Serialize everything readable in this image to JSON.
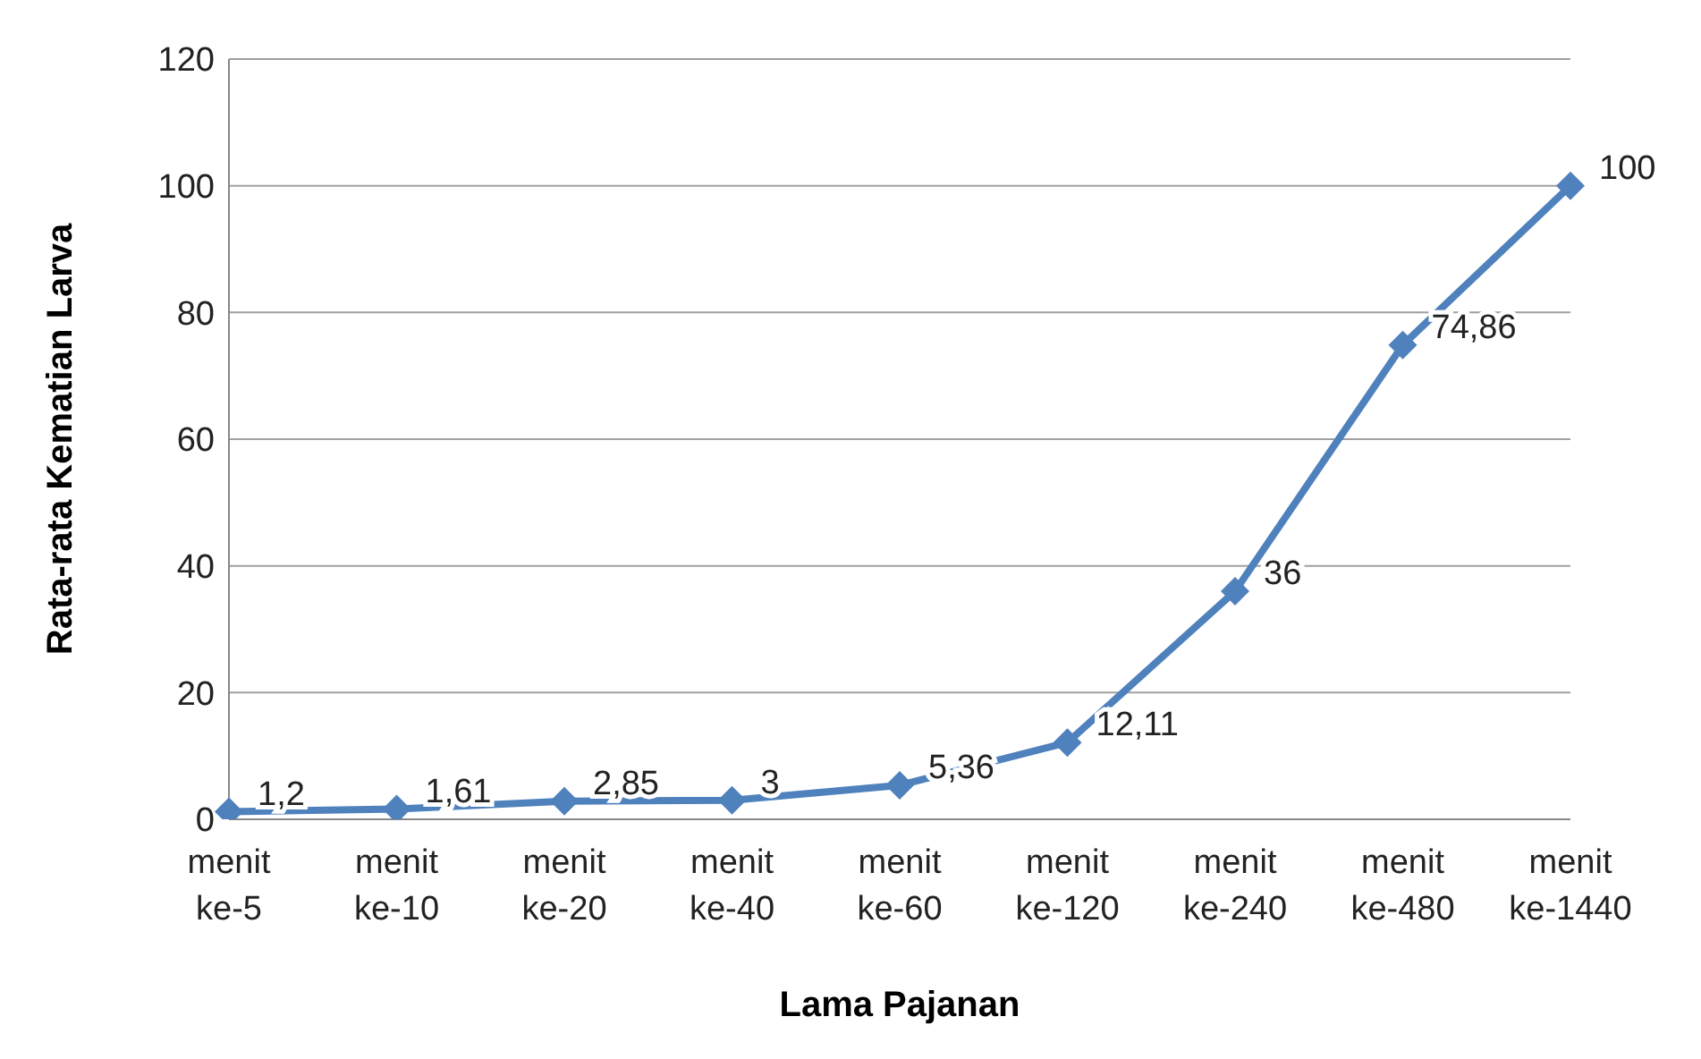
{
  "chart_data": {
    "type": "line",
    "xlabel": "Lama Pajanan",
    "ylabel": "Rata-rata Kematian Larva",
    "categories": [
      "menit ke-5",
      "menit ke-10",
      "menit ke-20",
      "menit ke-40",
      "menit ke-60",
      "menit ke-120",
      "menit ke-240",
      "menit ke-480",
      "menit ke-1440"
    ],
    "series": [
      {
        "color": "#4f81bd",
        "values": [
          1.2,
          1.61,
          2.85,
          3,
          5.36,
          12.11,
          36,
          74.86,
          100
        ],
        "value_labels": [
          "1,2",
          "1,61",
          "2,85",
          "3",
          "5,36",
          "12,11",
          "36",
          "74,86",
          "100"
        ]
      }
    ],
    "ylim": [
      0,
      120
    ],
    "yticks": [
      0,
      20,
      40,
      60,
      80,
      100,
      120
    ],
    "grid": "y",
    "marker": "diamond",
    "line_style": "solid",
    "legend": false
  }
}
